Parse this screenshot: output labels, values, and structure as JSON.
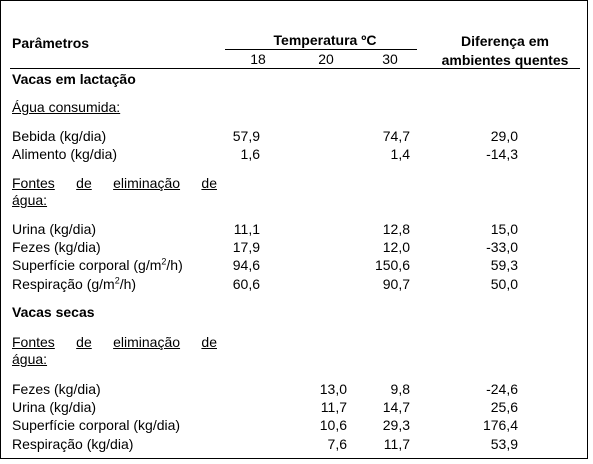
{
  "header": {
    "params": "Parâmetros",
    "temp": "Temperatura ºC",
    "temp_cols": [
      "18",
      "20",
      "30"
    ],
    "diff_line1": "Diferença em",
    "diff_line2": "ambientes quentes"
  },
  "lactation": {
    "title": "Vacas em lactação",
    "water_consumed": "Água consumida:",
    "consumed_rows": [
      {
        "label": "Bebida (kg/dia)",
        "t18": "57,9",
        "t20": "",
        "t30": "74,7",
        "diff": "29,0"
      },
      {
        "label": "Alimento (kg/dia)",
        "t18": "1,6",
        "t20": "",
        "t30": "1,4",
        "diff": "-14,3"
      }
    ],
    "elimination_words": [
      "Fontes",
      "de",
      "eliminação",
      "de"
    ],
    "elimination_line2": "água:",
    "elimination_rows": [
      {
        "label": "Urina (kg/dia)",
        "t18": "11,1",
        "t20": "",
        "t30": "12,8",
        "diff": "15,0"
      },
      {
        "label": "Fezes (kg/dia)",
        "t18": "17,9",
        "t20": "",
        "t30": "12,0",
        "diff": "-33,0"
      },
      {
        "label_pre": "Superfície corporal (g/m",
        "label_sup": "2",
        "label_post": "/h)",
        "t18": "94,6",
        "t20": "",
        "t30": "150,6",
        "diff": "59,3"
      },
      {
        "label_pre": "Respiração (g/m",
        "label_sup": "2",
        "label_post": "/h)",
        "t18": "60,6",
        "t20": "",
        "t30": "90,7",
        "diff": "50,0"
      }
    ]
  },
  "dry": {
    "title": "Vacas secas",
    "elimination_words": [
      "Fontes",
      "de",
      "eliminação",
      "de"
    ],
    "elimination_line2": "água:",
    "rows": [
      {
        "label": "Fezes (kg/dia)",
        "t18": "",
        "t20": "13,0",
        "t30": "9,8",
        "diff": "-24,6"
      },
      {
        "label": "Urina (kg/dia)",
        "t18": "",
        "t20": "11,7",
        "t30": "14,7",
        "diff": "25,6"
      },
      {
        "label": "Superfície corporal (kg/dia)",
        "t18": "",
        "t20": "10,6",
        "t30": "29,3",
        "diff": "176,4"
      },
      {
        "label": "Respiração (kg/dia)",
        "t18": "",
        "t20": "7,6",
        "t30": "11,7",
        "diff": "53,9"
      }
    ]
  }
}
